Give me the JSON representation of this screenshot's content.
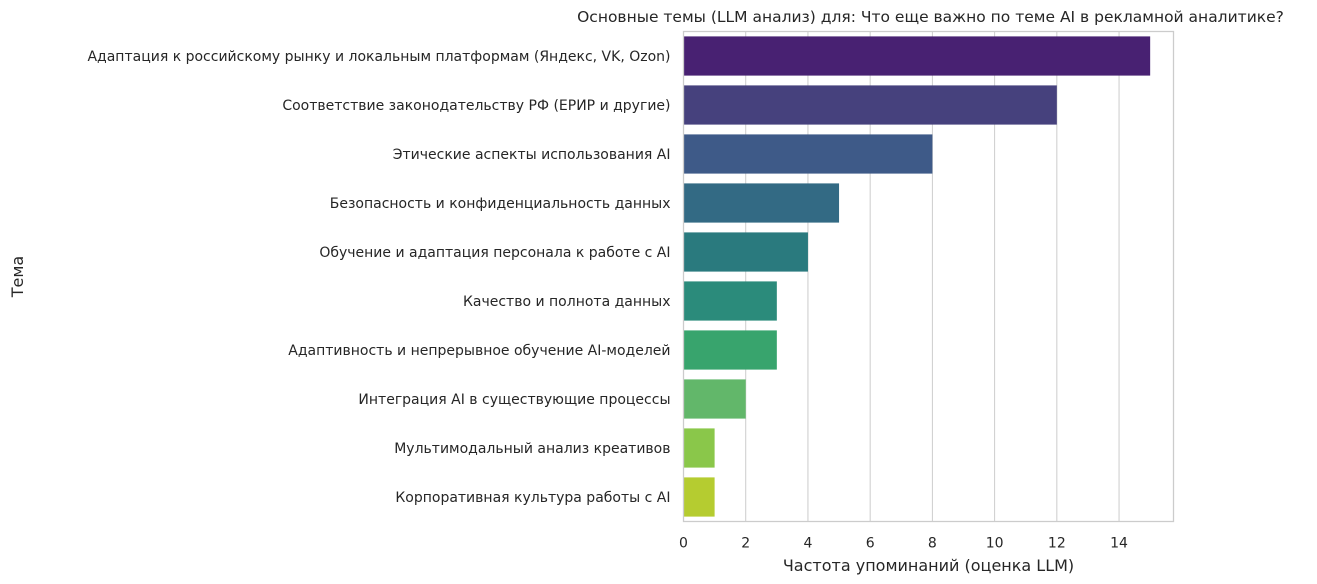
{
  "chart_data": {
    "type": "bar",
    "orientation": "horizontal",
    "title": "Основные темы (LLM анализ) для: Что еще важно по теме AI в рекламной аналитике?",
    "xlabel": "Частота упоминаний (оценка LLM)",
    "ylabel": "Тема",
    "xlim": [
      0,
      15.75
    ],
    "xticks": [
      0,
      2,
      4,
      6,
      8,
      10,
      12,
      14
    ],
    "grid": "vertical",
    "categories": [
      "Адаптация к российскому рынку и локальным платформам (Яндекс, VK, Ozon)",
      "Соответствие законодательству РФ (ЕРИР и другие)",
      "Этические аспекты использования AI",
      "Безопасность и конфиденциальность данных",
      "Обучение и адаптация персонала к работе с AI",
      "Качество и полнота данных",
      "Адаптивность и непрерывное обучение AI-моделей",
      "Интеграция AI в существующие процессы",
      "Мультимодальный анализ креативов",
      "Корпоративная культура работы с AI"
    ],
    "values": [
      15,
      12,
      8,
      5,
      4,
      3,
      3,
      2,
      1,
      1
    ],
    "colors": [
      "#482172",
      "#46417d",
      "#3e5a88",
      "#336a84",
      "#2a7a7e",
      "#2b8b7b",
      "#38a46d",
      "#62b76a",
      "#8ac74a",
      "#b5cc30"
    ]
  }
}
